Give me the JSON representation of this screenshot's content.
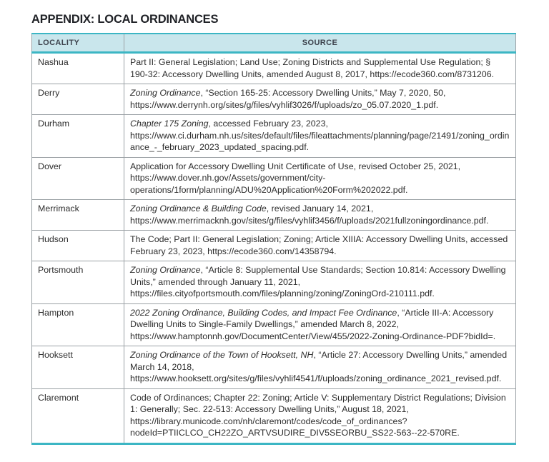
{
  "page": {
    "title": "APPENDIX: LOCAL ORDINANCES"
  },
  "colors": {
    "accent_teal": "#3cb6c4",
    "header_fill": "#c9e6ec",
    "grid_gray": "#9ba1a5",
    "text": "#2d2d2d"
  },
  "table": {
    "columns": [
      "LOCALITY",
      "SOURCE"
    ],
    "rows": [
      {
        "locality": "Nashua",
        "source": [
          {
            "italic": false,
            "text": "Part II: General Legislation; Land Use; Zoning Districts and Supplemental Use Regulation; § 190-32: Accessory Dwelling Units, amended August 8, 2017, https://ecode360.com/8731206."
          }
        ]
      },
      {
        "locality": "Derry",
        "source": [
          {
            "italic": true,
            "text": "Zoning Ordinance"
          },
          {
            "italic": false,
            "text": ", “Section 165-25: Accessory Dwelling Units,” May 7, 2020, 50, https://www.derrynh.org/sites/g/files/vyhlif3026/f/uploads/zo_05.07.2020_1.pdf."
          }
        ]
      },
      {
        "locality": "Durham",
        "source": [
          {
            "italic": true,
            "text": "Chapter 175 Zoning"
          },
          {
            "italic": false,
            "text": ", accessed February 23, 2023, https://www.ci.durham.nh.us/sites/default/files/fileattachments/planning/page/21491/zoning_ordinance_-_february_2023_updated_spacing.pdf."
          }
        ]
      },
      {
        "locality": "Dover",
        "source": [
          {
            "italic": false,
            "text": "Application for Accessory Dwelling Unit Certificate of Use, revised October 25, 2021, https://www.dover.nh.gov/Assets/government/city-operations/1form/planning/ADU%20Application%20Form%202022.pdf."
          }
        ]
      },
      {
        "locality": "Merrimack",
        "source": [
          {
            "italic": true,
            "text": "Zoning Ordinance & Building Code"
          },
          {
            "italic": false,
            "text": ", revised January 14, 2021, https://www.merrimacknh.gov/sites/g/files/vyhlif3456/f/uploads/2021fullzoningordinance.pdf."
          }
        ]
      },
      {
        "locality": "Hudson",
        "source": [
          {
            "italic": false,
            "text": "The Code; Part II: General Legislation; Zoning; Article XIIIA: Accessory Dwelling Units, accessed February 23, 2023, https://ecode360.com/14358794."
          }
        ]
      },
      {
        "locality": "Portsmouth",
        "source": [
          {
            "italic": true,
            "text": "Zoning Ordinance"
          },
          {
            "italic": false,
            "text": ", “Article 8: Supplemental Use Standards; Section 10.814: Accessory Dwelling Units,” amended through January 11, 2021, https://files.cityofportsmouth.com/files/planning/zoning/ZoningOrd-210111.pdf."
          }
        ]
      },
      {
        "locality": "Hampton",
        "source": [
          {
            "italic": true,
            "text": "2022 Zoning Ordinance, Building Codes, and Impact Fee Ordinance"
          },
          {
            "italic": false,
            "text": ", “Article III-A: Accessory Dwelling Units to Single-Family Dwellings,” amended March 8, 2022, https://www.hamptonnh.gov/DocumentCenter/View/455/2022-Zoning-Ordinance-PDF?bidId=."
          }
        ]
      },
      {
        "locality": "Hooksett",
        "source": [
          {
            "italic": true,
            "text": "Zoning Ordinance of the Town of Hooksett, NH"
          },
          {
            "italic": false,
            "text": ", “Article 27: Accessory Dwelling Units,” amended March 14, 2018, https://www.hooksett.org/sites/g/files/vyhlif4541/f/uploads/zoning_ordinance_2021_revised.pdf."
          }
        ]
      },
      {
        "locality": "Claremont",
        "source": [
          {
            "italic": false,
            "text": "Code of Ordinances; Chapter 22: Zoning; Article V: Supplementary District Regulations; Division 1: Generally; Sec. 22-513: Accessory Dwelling Units,” August 18, 2021, https://library.municode.com/nh/claremont/codes/code_of_ordinances?nodeId=PTIICLCO_CH22ZO_ARTVSUDIRE_DIV5SEORBU_SS22-563--22-570RE."
          }
        ]
      }
    ]
  }
}
